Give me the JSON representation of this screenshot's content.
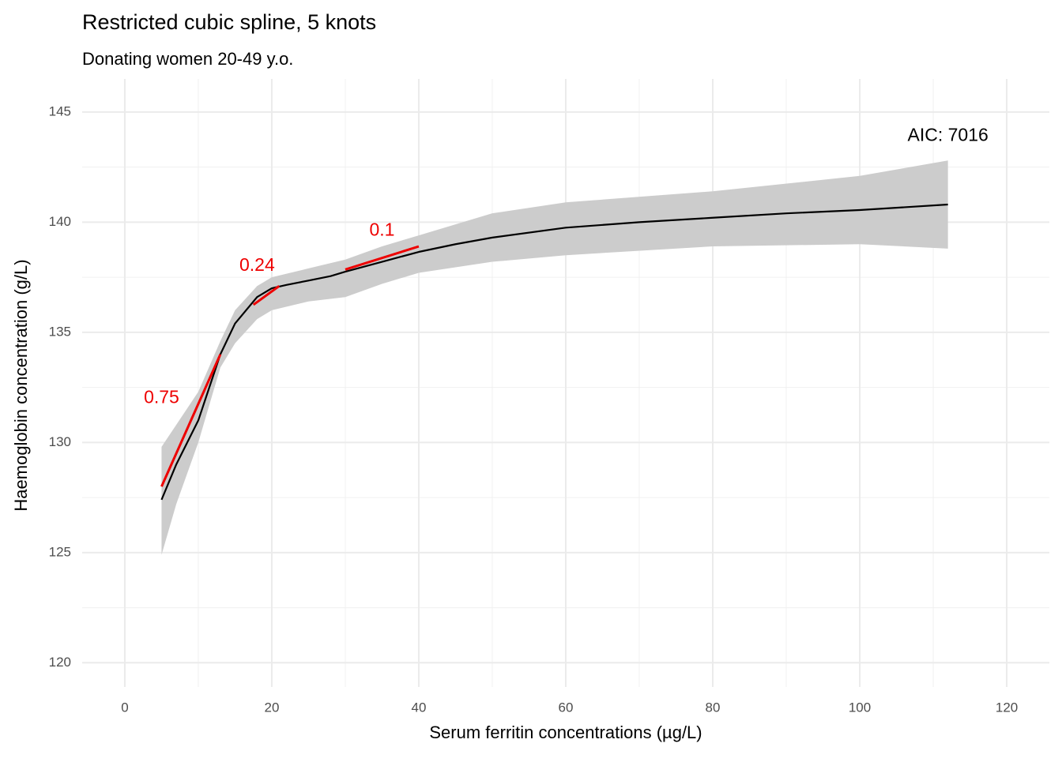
{
  "chart_data": {
    "type": "line",
    "title": "Restricted cubic spline, 5 knots",
    "subtitle": "Donating women 20-49 y.o.",
    "x_label": "Serum ferritin concentrations (µg/L)",
    "y_label": "Haemoglobin concentration (g/L)",
    "xlim": [
      -5.8,
      125.8
    ],
    "ylim": [
      118.9,
      146.5
    ],
    "xticks": [
      0,
      20,
      40,
      60,
      80,
      100,
      120
    ],
    "yticks": [
      120,
      125,
      130,
      135,
      140,
      145
    ],
    "grid": true,
    "fit": {
      "color": "#000000",
      "x": [
        5,
        7,
        10,
        13,
        15,
        18,
        20,
        22,
        25,
        28,
        30,
        35,
        40,
        45,
        50,
        60,
        70,
        80,
        90,
        100,
        112
      ],
      "values": [
        127.4,
        129.0,
        131.0,
        134.0,
        135.4,
        136.6,
        137.0,
        137.15,
        137.35,
        137.55,
        137.75,
        138.2,
        138.65,
        139.0,
        139.3,
        139.75,
        140.0,
        140.2,
        140.4,
        140.55,
        140.8
      ]
    },
    "ribbon": {
      "color": "#cccccc",
      "x": [
        5,
        7,
        10,
        13,
        15,
        18,
        20,
        25,
        30,
        35,
        40,
        50,
        60,
        80,
        100,
        112
      ],
      "lower": [
        124.9,
        127.2,
        130.0,
        133.4,
        134.5,
        135.6,
        136.0,
        136.4,
        136.6,
        137.2,
        137.7,
        138.2,
        138.5,
        138.9,
        139.0,
        138.8
      ],
      "upper": [
        129.8,
        130.8,
        132.3,
        134.6,
        136.0,
        137.1,
        137.5,
        137.9,
        138.3,
        138.9,
        139.4,
        140.4,
        140.9,
        141.4,
        142.1,
        142.8
      ]
    },
    "annotations": [
      {
        "text": "0.75",
        "x": 5,
        "y": 132,
        "color": "#ee0000",
        "segment": {
          "x": [
            5,
            13
          ],
          "y": [
            128,
            134
          ]
        }
      },
      {
        "text": "0.24",
        "x": 18,
        "y": 138,
        "color": "#ee0000",
        "segment": {
          "x": [
            17.5,
            21
          ],
          "y": [
            136.25,
            137.1
          ]
        }
      },
      {
        "text": "0.1",
        "x": 35,
        "y": 139.6,
        "color": "#ee0000",
        "segment": {
          "x": [
            30,
            40
          ],
          "y": [
            137.85,
            138.9
          ]
        }
      },
      {
        "text": "AIC: 7016",
        "x": 112,
        "y": 143.9,
        "color": "#000000"
      }
    ]
  }
}
